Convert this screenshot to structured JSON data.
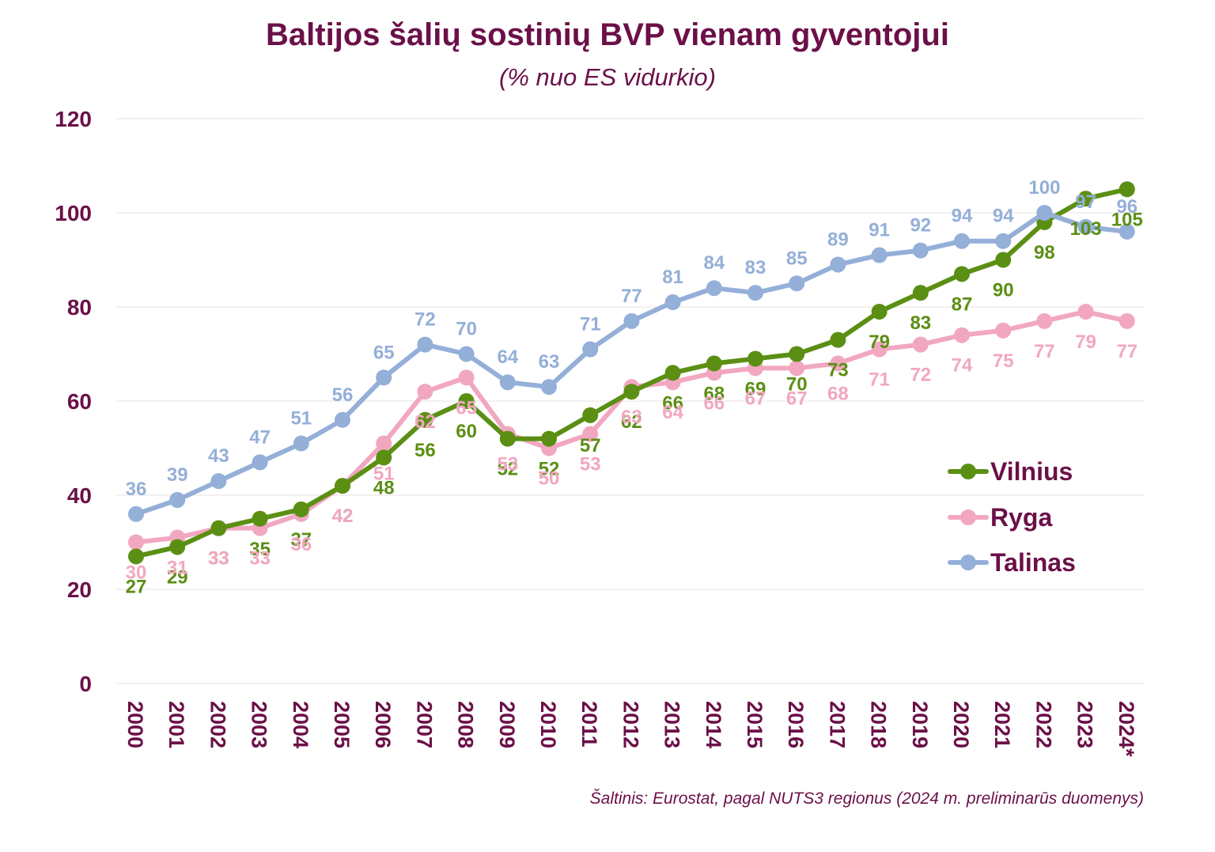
{
  "title": "Baltijos šalių sostinių BVP vienam gyventojui",
  "subtitle": "(% nuo ES vidurkio)",
  "source": "Šaltinis: Eurostat, pagal NUTS3 regionus (2024 m. preliminarūs duomenys)",
  "colors": {
    "title": "#6b1048",
    "vilnius": "#5b8f14",
    "ryga": "#f2a7c1",
    "talinas": "#94afd8",
    "grid": "#ece6ea"
  },
  "chart_data": {
    "type": "line",
    "title": "Baltijos šalių sostinių BVP vienam gyventojui",
    "subtitle": "(% nuo ES vidurkio)",
    "x": [
      "2000",
      "2001",
      "2002",
      "2003",
      "2004",
      "2005",
      "2006",
      "2007",
      "2008",
      "2009",
      "2010",
      "2011",
      "2012",
      "2013",
      "2014",
      "2015",
      "2016",
      "2017",
      "2018",
      "2019",
      "2020",
      "2021",
      "2022",
      "2023",
      "2024*"
    ],
    "ylim": [
      0,
      120
    ],
    "yticks": [
      0,
      20,
      40,
      60,
      80,
      100,
      120
    ],
    "grid": true,
    "legend_position": "right",
    "series": [
      {
        "name": "Vilnius",
        "color": "#5b8f14",
        "label_position": "below",
        "values": [
          27,
          29,
          33,
          35,
          37,
          42,
          48,
          56,
          60,
          52,
          52,
          57,
          62,
          66,
          68,
          69,
          70,
          73,
          79,
          83,
          87,
          90,
          98,
          103,
          105
        ]
      },
      {
        "name": "Ryga",
        "color": "#f2a7c1",
        "label_position": "below",
        "values": [
          30,
          31,
          33,
          33,
          36,
          42,
          51,
          62,
          65,
          53,
          50,
          53,
          63,
          64,
          66,
          67,
          67,
          68,
          71,
          72,
          74,
          75,
          77,
          79,
          77
        ]
      },
      {
        "name": "Talinas",
        "color": "#94afd8",
        "label_position": "above",
        "values": [
          36,
          39,
          43,
          47,
          51,
          56,
          65,
          72,
          70,
          64,
          63,
          71,
          77,
          81,
          84,
          83,
          85,
          89,
          91,
          92,
          94,
          94,
          100,
          97,
          96
        ]
      }
    ]
  }
}
